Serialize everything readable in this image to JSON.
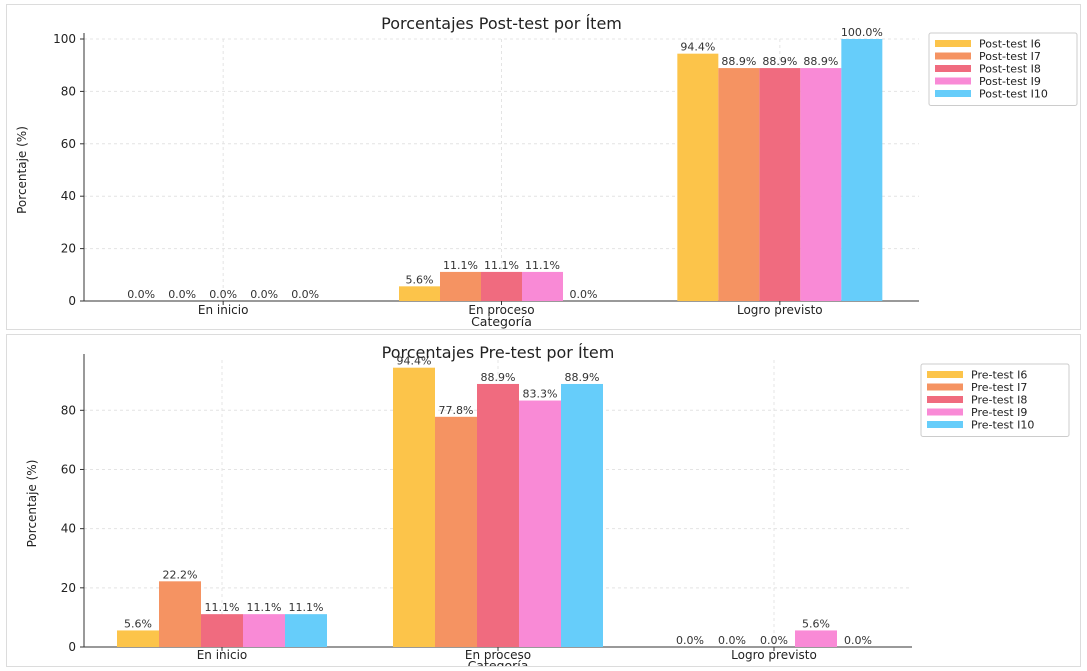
{
  "chart_data": [
    {
      "type": "bar",
      "title": "Porcentajes Post-test por Ítem",
      "xlabel": "Categoría",
      "ylabel": "Porcentaje (%)",
      "ylim": [
        0,
        100
      ],
      "yticks": [
        0,
        20,
        40,
        60,
        80,
        100
      ],
      "grid": true,
      "legend_position": "top-right",
      "categories": [
        "En inicio",
        "En proceso",
        "Logro previsto"
      ],
      "series": [
        {
          "name": "Post-test I6",
          "color": "#fcc44a",
          "values": [
            0.0,
            5.6,
            94.4
          ],
          "labels": [
            "0.0%",
            "5.6%",
            "94.4%"
          ]
        },
        {
          "name": "Post-test I7",
          "color": "#f59362",
          "values": [
            0.0,
            11.1,
            88.9
          ],
          "labels": [
            "0.0%",
            "11.1%",
            "88.9%"
          ]
        },
        {
          "name": "Post-test I8",
          "color": "#f06b7f",
          "values": [
            0.0,
            11.1,
            88.9
          ],
          "labels": [
            "0.0%",
            "11.1%",
            "88.9%"
          ]
        },
        {
          "name": "Post-test I9",
          "color": "#f98ad6",
          "values": [
            0.0,
            11.1,
            88.9
          ],
          "labels": [
            "0.0%",
            "11.1%",
            "88.9%"
          ]
        },
        {
          "name": "Post-test I10",
          "color": "#66cdfa",
          "values": [
            0.0,
            0.0,
            100.0
          ],
          "labels": [
            "0.0%",
            "0.0%",
            "100.0%"
          ]
        }
      ]
    },
    {
      "type": "bar",
      "title": "Porcentajes Pre-test por Ítem",
      "xlabel": "Categoría",
      "ylabel": "Porcentaje (%)",
      "ylim": [
        0,
        97
      ],
      "yticks": [
        0,
        20,
        40,
        60,
        80
      ],
      "grid": true,
      "legend_position": "top-right",
      "categories": [
        "En inicio",
        "En proceso",
        "Logro previsto"
      ],
      "series": [
        {
          "name": "Pre-test I6",
          "color": "#fcc44a",
          "values": [
            5.6,
            94.4,
            0.0
          ],
          "labels": [
            "5.6%",
            "94.4%",
            "0.0%"
          ]
        },
        {
          "name": "Pre-test I7",
          "color": "#f59362",
          "values": [
            22.2,
            77.8,
            0.0
          ],
          "labels": [
            "22.2%",
            "77.8%",
            "0.0%"
          ]
        },
        {
          "name": "Pre-test I8",
          "color": "#f06b7f",
          "values": [
            11.1,
            88.9,
            0.0
          ],
          "labels": [
            "11.1%",
            "88.9%",
            "0.0%"
          ]
        },
        {
          "name": "Pre-test I9",
          "color": "#f98ad6",
          "values": [
            11.1,
            83.3,
            5.6
          ],
          "labels": [
            "11.1%",
            "83.3%",
            "5.6%"
          ]
        },
        {
          "name": "Pre-test I10",
          "color": "#66cdfa",
          "values": [
            11.1,
            88.9,
            0.0
          ],
          "labels": [
            "11.1%",
            "88.9%",
            "0.0%"
          ]
        }
      ]
    }
  ]
}
